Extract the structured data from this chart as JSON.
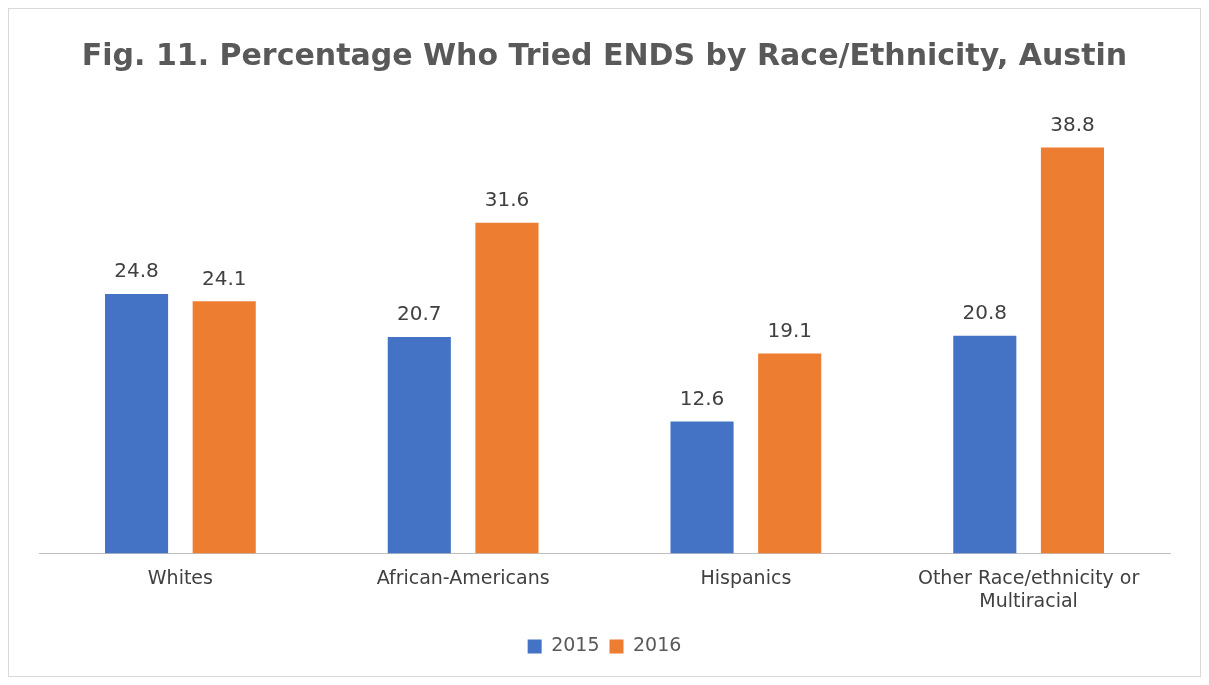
{
  "chart_data": {
    "type": "bar",
    "title": "Fig. 11. Percentage Who Tried ENDS by Race/Ethnicity, Austin",
    "categories": [
      "Whites",
      "African-Americans",
      "Hispanics",
      "Other Race/ethnicity or Multiracial"
    ],
    "series": [
      {
        "name": "2015",
        "color": "#4472c4",
        "values": [
          24.8,
          20.7,
          12.6,
          20.8
        ]
      },
      {
        "name": "2016",
        "color": "#ed7d31",
        "values": [
          24.1,
          31.6,
          19.1,
          38.8
        ]
      }
    ],
    "data_labels": true,
    "legend": "bottom",
    "grid": false
  }
}
